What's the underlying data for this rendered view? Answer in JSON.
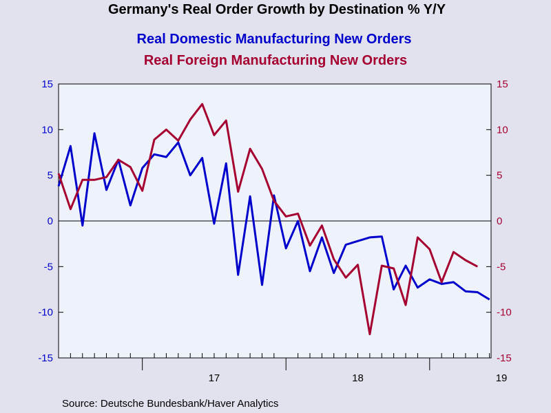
{
  "chart_data": {
    "type": "line",
    "title": "Germany's Real Order Growth by Destination % Y/Y",
    "source": "Source:  Deutsche Bundesbank/Haver Analytics",
    "x_start": "2016-06",
    "x_tick_labels": [
      "17",
      "18",
      "19"
    ],
    "left_axis": {
      "ylim": [
        -15,
        15
      ],
      "ticks": [
        -15,
        -10,
        -5,
        0,
        5,
        10,
        15
      ],
      "color": "#0000cc"
    },
    "right_axis": {
      "ylim": [
        -15,
        15
      ],
      "ticks": [
        -15,
        -10,
        -5,
        0,
        5,
        10,
        15
      ],
      "color": "#a50030"
    },
    "series": [
      {
        "name": "Real Domestic Manufacturing New Orders",
        "axis": "left",
        "color": "#0000cc",
        "values": [
          3.8,
          8.2,
          -0.5,
          9.6,
          3.4,
          6.7,
          1.7,
          5.8,
          7.3,
          7.0,
          8.6,
          5.0,
          6.9,
          -0.3,
          6.3,
          -5.9,
          2.7,
          -7.0,
          2.8,
          -3.0,
          0.0,
          -5.5,
          -1.8,
          -5.7,
          -2.6,
          -2.2,
          -1.8,
          -1.7,
          -7.5,
          -4.9,
          -7.3,
          -6.4,
          -6.9,
          -6.7,
          -7.7,
          -7.8,
          -8.6
        ]
      },
      {
        "name": "Real Foreign Manufacturing New Orders",
        "axis": "right",
        "color": "#a50030",
        "values": [
          5.2,
          1.3,
          4.5,
          4.5,
          4.8,
          6.7,
          5.9,
          3.3,
          8.9,
          10.0,
          8.8,
          11.1,
          12.8,
          9.4,
          11.0,
          3.2,
          7.9,
          5.7,
          2.2,
          0.5,
          0.8,
          -2.7,
          -0.5,
          -4.2,
          -6.2,
          -4.8,
          -12.4,
          -4.9,
          -5.2,
          -9.2,
          -1.8,
          -3.1,
          -6.7,
          -3.4,
          -4.3,
          -5.0
        ]
      }
    ],
    "grid": false,
    "zero_line": true
  }
}
